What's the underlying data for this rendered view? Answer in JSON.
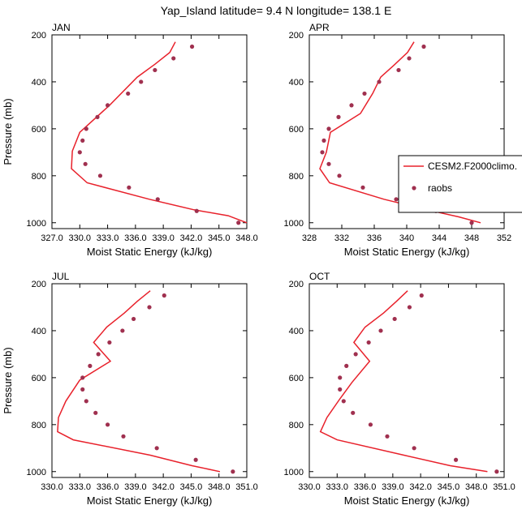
{
  "title": "Yap_Island  latitude= 9.4 N longitude= 138.1 E",
  "legend": {
    "model_label": "CESM2.F2000climo.",
    "obs_label": "raobs"
  },
  "colors": {
    "model": "#e8212b",
    "obs": "#a0304f",
    "frame": "#000000"
  },
  "chart_data": [
    {
      "type": "line",
      "panel": "JAN",
      "xlabel": "Moist Static Energy (kJ/kg)",
      "ylabel": "Pressure (mb)",
      "xlim": [
        327,
        348
      ],
      "ylim": [
        1025,
        200
      ],
      "xticks": [
        327,
        330,
        333,
        336,
        339,
        342,
        345,
        348
      ],
      "xtick_labels": [
        "327.0",
        "330.0",
        "333.0",
        "336.0",
        "339.0",
        "342.0",
        "345.0",
        "348.0"
      ],
      "yticks": [
        200,
        400,
        600,
        800,
        1000
      ],
      "ytick_labels": [
        "200",
        "400",
        "600",
        "800",
        "1000"
      ],
      "model": {
        "pressure": [
          230,
          275,
          325,
          380,
          500,
          615,
          695,
          770,
          830,
          900,
          945,
          970,
          1000
        ],
        "mse": [
          340.3,
          339.7,
          338.1,
          336.2,
          333.2,
          330.0,
          329.2,
          329.1,
          330.8,
          337.5,
          342.3,
          346.0,
          348.0
        ]
      },
      "obs": {
        "pressure": [
          250,
          300,
          350,
          400,
          450,
          500,
          550,
          600,
          650,
          700,
          750,
          800,
          850,
          900,
          950,
          1000
        ],
        "mse": [
          342.1,
          340.1,
          338.1,
          336.6,
          335.2,
          333.0,
          331.9,
          330.7,
          330.3,
          330.0,
          330.6,
          332.2,
          335.3,
          338.4,
          342.6,
          347.1
        ]
      }
    },
    {
      "type": "line",
      "panel": "APR",
      "xlabel": "Moist Static Energy (kJ/kg)",
      "ylabel": "",
      "xlim": [
        328,
        352
      ],
      "ylim": [
        1025,
        200
      ],
      "xticks": [
        328,
        332,
        336,
        340,
        344,
        348,
        352
      ],
      "xtick_labels": [
        "328",
        "332",
        "336",
        "340",
        "344",
        "348",
        "352"
      ],
      "yticks": [
        200,
        400,
        600,
        800,
        1000
      ],
      "ytick_labels": [
        "200",
        "400",
        "600",
        "800",
        "1000"
      ],
      "model": {
        "pressure": [
          230,
          275,
          330,
          380,
          450,
          535,
          615,
          700,
          770,
          830,
          900,
          945,
          975,
          1000
        ],
        "mse": [
          340.9,
          340.1,
          338.4,
          336.8,
          335.8,
          334.3,
          330.6,
          330.1,
          329.3,
          330.5,
          337.2,
          342.5,
          346.4,
          349.1
        ]
      },
      "obs": {
        "pressure": [
          250,
          300,
          350,
          400,
          450,
          500,
          550,
          600,
          650,
          700,
          750,
          800,
          850,
          900,
          950,
          1000
        ],
        "mse": [
          342.1,
          340.3,
          339.0,
          336.6,
          334.8,
          333.2,
          331.6,
          330.4,
          329.8,
          329.6,
          330.4,
          331.7,
          334.6,
          338.7,
          343.6,
          348.0
        ]
      }
    },
    {
      "type": "line",
      "panel": "JUL",
      "xlabel": "Moist Static Energy (kJ/kg)",
      "ylabel": "Pressure (mb)",
      "xlim": [
        330,
        351
      ],
      "ylim": [
        1025,
        200
      ],
      "xticks": [
        330,
        333,
        336,
        339,
        342,
        345,
        348,
        351
      ],
      "xtick_labels": [
        "330.0",
        "333.0",
        "336.0",
        "339.0",
        "342.0",
        "345.0",
        "348.0",
        "351.0"
      ],
      "yticks": [
        200,
        400,
        600,
        800,
        1000
      ],
      "ytick_labels": [
        "200",
        "400",
        "600",
        "800",
        "1000"
      ],
      "model": {
        "pressure": [
          230,
          275,
          325,
          385,
          450,
          530,
          610,
          700,
          770,
          830,
          865,
          930,
          975,
          1000
        ],
        "mse": [
          340.6,
          339.2,
          337.8,
          335.9,
          334.5,
          336.3,
          333.0,
          331.5,
          330.7,
          330.6,
          332.3,
          340.6,
          345.1,
          348.1
        ]
      },
      "obs": {
        "pressure": [
          250,
          300,
          350,
          400,
          450,
          500,
          550,
          600,
          650,
          700,
          750,
          800,
          850,
          900,
          950,
          1000
        ],
        "mse": [
          342.1,
          340.5,
          338.8,
          337.6,
          336.2,
          335.0,
          334.1,
          333.3,
          333.3,
          333.7,
          334.7,
          336.0,
          337.7,
          341.3,
          345.5,
          349.5
        ]
      }
    },
    {
      "type": "line",
      "panel": "OCT",
      "xlabel": "Moist Static Energy (kJ/kg)",
      "ylabel": "",
      "xlim": [
        330,
        351
      ],
      "ylim": [
        1025,
        200
      ],
      "xticks": [
        330,
        333,
        336,
        339,
        342,
        345,
        348,
        351
      ],
      "xtick_labels": [
        "330.0",
        "333.0",
        "336.0",
        "339.0",
        "342.0",
        "345.0",
        "348.0",
        "351.0"
      ],
      "yticks": [
        200,
        400,
        600,
        800,
        1000
      ],
      "ytick_labels": [
        "200",
        "400",
        "600",
        "800",
        "1000"
      ],
      "model": {
        "pressure": [
          230,
          275,
          325,
          385,
          450,
          530,
          620,
          690,
          770,
          830,
          865,
          930,
          975,
          1000
        ],
        "mse": [
          340.6,
          339.4,
          338.0,
          336.0,
          334.8,
          336.5,
          334.6,
          333.3,
          331.9,
          331.2,
          333.0,
          340.2,
          345.2,
          349.2
        ]
      },
      "obs": {
        "pressure": [
          250,
          300,
          350,
          400,
          450,
          500,
          550,
          600,
          650,
          700,
          750,
          800,
          850,
          900,
          950,
          1000
        ],
        "mse": [
          342.1,
          340.8,
          339.2,
          337.7,
          336.4,
          335.0,
          334.0,
          333.3,
          333.3,
          333.7,
          334.7,
          336.6,
          338.4,
          341.3,
          345.8,
          350.2
        ]
      }
    }
  ]
}
